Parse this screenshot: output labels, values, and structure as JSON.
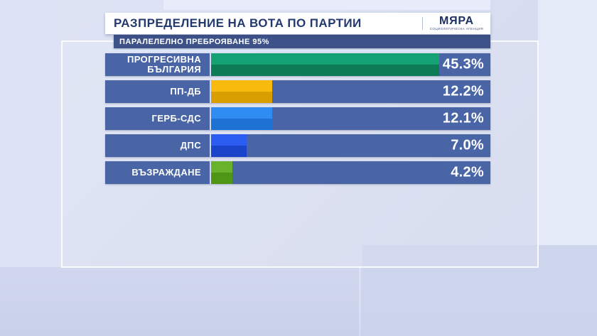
{
  "header": {
    "title": "РАЗПРЕДЕЛЕНИЕ НА ВОТА ПО ПАРТИИ",
    "subtitle": "ПАРАЛЕЛЕЛНО ПРЕБРОЯВАНЕ 95%",
    "logo": {
      "name": "МЯРА",
      "tagline": "СОЦИОЛОГИЧЕСКА АГЕНЦИЯ"
    }
  },
  "chart_data": {
    "type": "bar",
    "orientation": "horizontal",
    "title": "РАЗПРЕДЕЛЕНИЕ НА ВОТА ПО ПАРТИИ",
    "subtitle": "ПАРАЛЕЛЕЛНО ПРЕБРОЯВАНЕ 95%",
    "categories": [
      "ПРОГРЕСИВНА БЪЛГАРИЯ",
      "ПП-ДБ",
      "ГЕРБ-СДС",
      "ДПС",
      "ВЪЗРАЖДАНЕ"
    ],
    "values": [
      45.3,
      12.2,
      12.1,
      7.0,
      4.2
    ],
    "value_labels": [
      "45.3%",
      "12.2%",
      "12.1%",
      "7.0%",
      "4.2%"
    ],
    "xlim": [
      0,
      55.5
    ],
    "legend": "none",
    "grid": false,
    "colors": {
      "row_background": "#4a65a6",
      "value_text": "#ffffff",
      "label_text": "#ffffff"
    },
    "bar_colors": [
      {
        "top": "#14a173",
        "bottom": "#0d7b55"
      },
      {
        "top": "#f8bb0b",
        "bottom": "#d99e00"
      },
      {
        "top": "#2f8cf2",
        "bottom": "#1e72d4"
      },
      {
        "top": "#2b5ef0",
        "bottom": "#1a45cb"
      },
      {
        "top": "#68b22c",
        "bottom": "#4f9617"
      }
    ]
  }
}
